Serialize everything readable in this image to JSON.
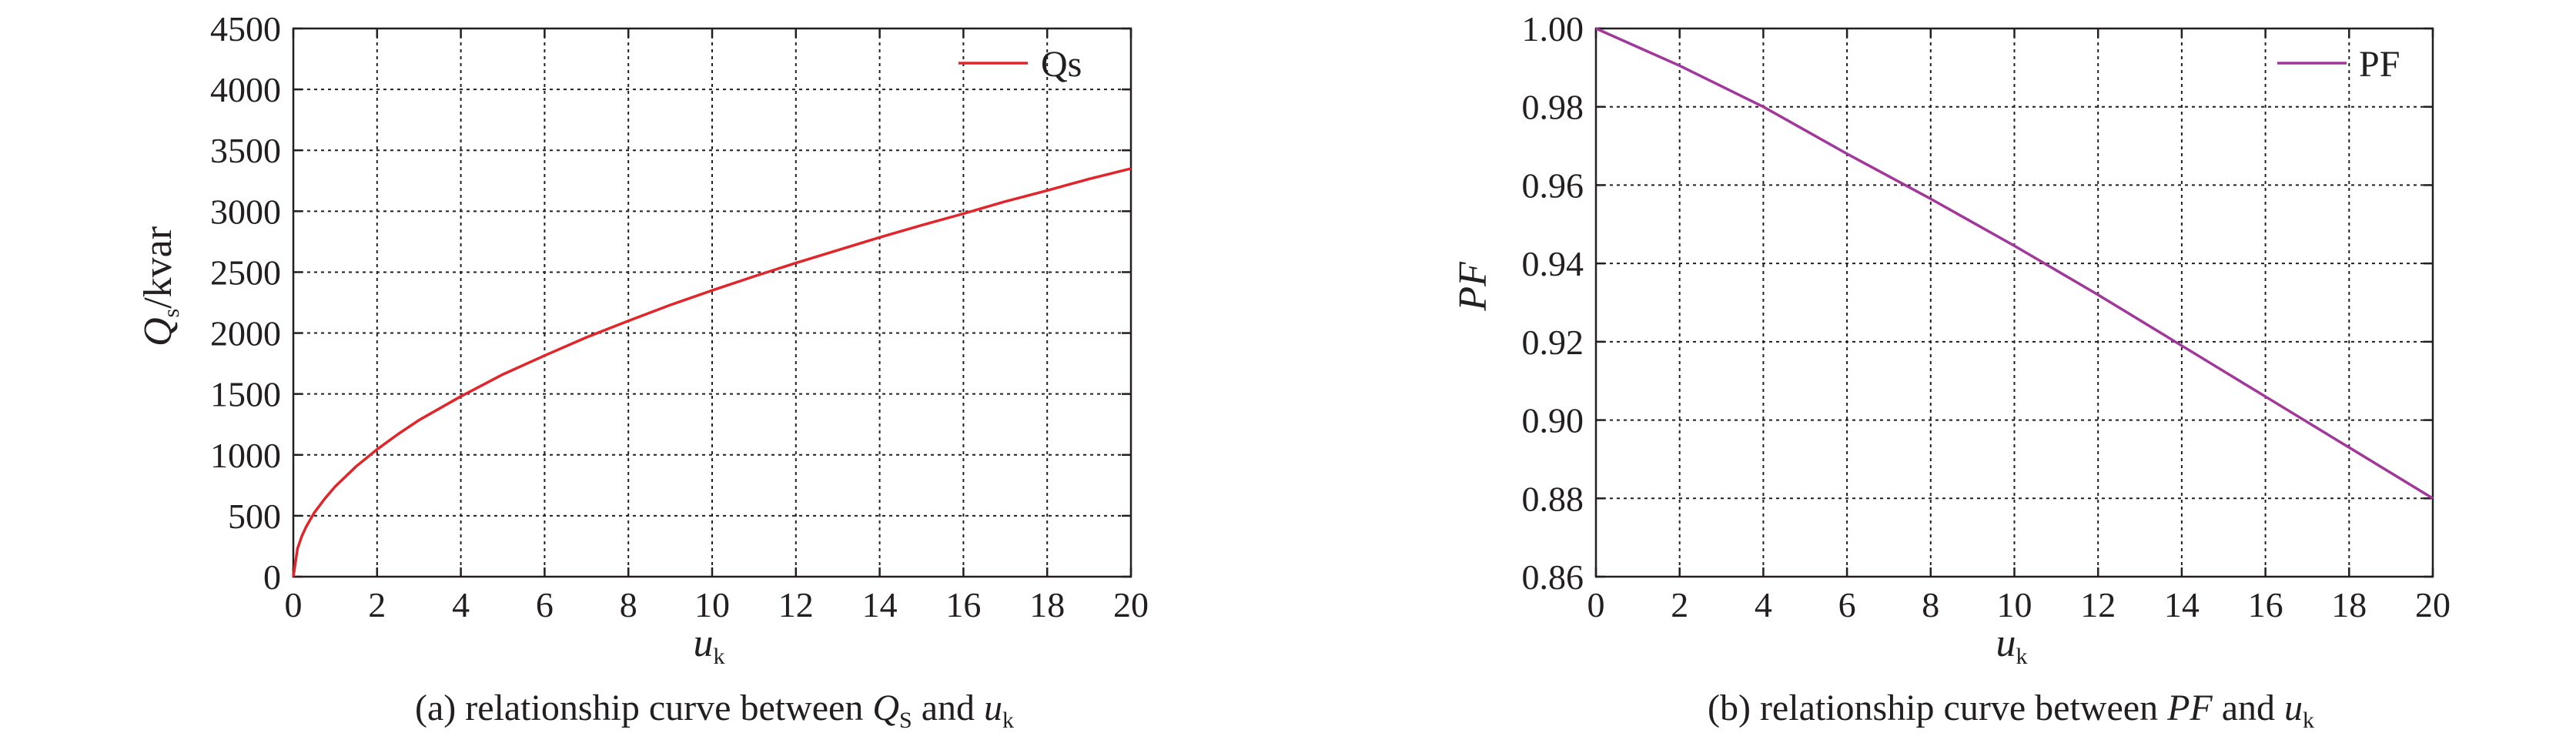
{
  "chart_data": [
    {
      "type": "line",
      "subplot_label": "(a)",
      "caption": {
        "prefix": "(a) relationship curve between ",
        "q_symbol": "Q",
        "q_sub": "S",
        "middle": " and ",
        "u_symbol": "u",
        "u_sub": "k"
      },
      "xlabel": {
        "symbol": "u",
        "sub": "k"
      },
      "ylabel": {
        "symbol": "Q",
        "sub": "s",
        "unit": "/kvar"
      },
      "xlim": [
        0,
        20
      ],
      "ylim": [
        0,
        4500
      ],
      "xticks": [
        "0",
        "2",
        "4",
        "6",
        "8",
        "10",
        "12",
        "14",
        "16",
        "18",
        "20"
      ],
      "yticks": [
        "0",
        "500",
        "1000",
        "1500",
        "2000",
        "2500",
        "3000",
        "3500",
        "4000",
        "4500"
      ],
      "grid": true,
      "legend_position": "top-right",
      "series": [
        {
          "name": "Qs",
          "color": "#e0262b",
          "x": [
            0,
            0.1,
            0.2,
            0.3,
            0.5,
            0.75,
            1,
            1.5,
            2,
            2.5,
            3,
            4,
            5,
            6,
            7,
            8,
            9,
            10,
            11,
            12,
            13,
            14,
            15,
            16,
            17,
            18,
            19,
            20
          ],
          "y": [
            0,
            230,
            330,
            405,
            525,
            640,
            740,
            905,
            1045,
            1170,
            1285,
            1480,
            1660,
            1815,
            1965,
            2100,
            2230,
            2350,
            2465,
            2575,
            2680,
            2785,
            2885,
            2980,
            3080,
            3170,
            3265,
            3350
          ]
        }
      ]
    },
    {
      "type": "line",
      "subplot_label": "(b)",
      "caption": {
        "prefix": "(b) relationship curve between ",
        "pf_symbol": "PF",
        "middle": " and ",
        "u_symbol": "u",
        "u_sub": "k"
      },
      "xlabel": {
        "symbol": "u",
        "sub": "k"
      },
      "ylabel": {
        "symbol": "PF"
      },
      "xlim": [
        0,
        20
      ],
      "ylim": [
        0.86,
        1.0
      ],
      "xticks": [
        "0",
        "2",
        "4",
        "6",
        "8",
        "10",
        "12",
        "14",
        "16",
        "18",
        "20"
      ],
      "yticks": [
        "0.86",
        "0.88",
        "0.90",
        "0.92",
        "0.94",
        "0.96",
        "0.98",
        "1.00"
      ],
      "grid": true,
      "legend_position": "top-right",
      "series": [
        {
          "name": "PF",
          "color": "#a2379b",
          "x": [
            0,
            2,
            4,
            6,
            8,
            10,
            12,
            14,
            16,
            18,
            20
          ],
          "y": [
            1.0,
            0.9905,
            0.98,
            0.968,
            0.9565,
            0.9445,
            0.932,
            0.919,
            0.906,
            0.893,
            0.88
          ]
        }
      ]
    }
  ]
}
